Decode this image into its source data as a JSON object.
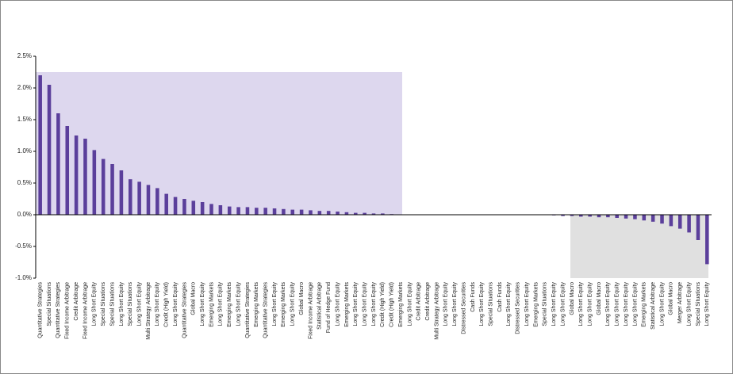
{
  "chart_data": {
    "type": "bar",
    "categories": [
      "Quantitative Strategies",
      "Special Situations",
      "Quantitative Strategies",
      "Fixed Income Arbitrage",
      "Credit Arbitrage",
      "Fixed Income Arbitrage",
      "Long Short Equity",
      "Special Situations",
      "Special Situations",
      "Long Short Equity",
      "Special Situations",
      "Long Short Equity",
      "Multi Strategy Arbitrage",
      "Long Short Equity",
      "Credit (High Yield)",
      "Long Short Equity",
      "Quantitative Strategies",
      "Global Macro",
      "Long Short Equity",
      "Emerging Markets",
      "Long Short Equity",
      "Emerging Markets",
      "Long Short Equity",
      "Quantitative Strategies",
      "Emerging Markets",
      "Quantitative Strategies",
      "Long Short Equity",
      "Emerging Markets",
      "Long Short Equity",
      "Global Macro",
      "Fixed Income Arbitrage",
      "Statistical Arbitrage",
      "Fund of Hedge Fund",
      "Long Short Equity",
      "Emerging Markets",
      "Long Short Equity",
      "Long Short Equity",
      "Long Short Equity",
      "Credit (High Yield)",
      "Credit (High Yield)",
      "Emerging Markets",
      "Long Short Equity",
      "Credit Arbitrage",
      "Credit Arbitrage",
      "Multi Strategy Arbitrage",
      "Long Short Equity",
      "Long Short Equity",
      "Distressed Securities",
      "Cash Funds",
      "Long Short Equity",
      "Special Situations",
      "Cash Funds",
      "Long Short Equity",
      "Distressed Securities",
      "Long Short Equity",
      "Emerging Markets",
      "Special Situations",
      "Long Short Equity",
      "Long Short Equity",
      "Global Macro",
      "Long Short Equity",
      "Long Short Equity",
      "Global Macro",
      "Long Short Equity",
      "Long Short Equity",
      "Long Short Equity",
      "Long Short Equity",
      "Emerging Markets",
      "Statistical Arbitrage",
      "Long Short Equity",
      "Global Macro",
      "Merger Arbitrage",
      "Long Short Equity",
      "Special Situations",
      "Long Short Equity"
    ],
    "values": [
      2.2,
      2.05,
      1.6,
      1.4,
      1.25,
      1.2,
      1.02,
      0.88,
      0.8,
      0.7,
      0.56,
      0.52,
      0.47,
      0.42,
      0.33,
      0.28,
      0.25,
      0.22,
      0.2,
      0.17,
      0.15,
      0.13,
      0.12,
      0.12,
      0.11,
      0.11,
      0.1,
      0.09,
      0.08,
      0.08,
      0.07,
      0.06,
      0.06,
      0.05,
      0.04,
      0.03,
      0.03,
      0.02,
      0.02,
      0.01,
      0,
      0,
      0,
      0,
      0,
      0,
      0,
      0,
      0,
      0,
      0,
      0,
      0,
      0,
      0,
      0,
      0,
      -0.01,
      -0.02,
      -0.02,
      -0.03,
      -0.03,
      -0.04,
      -0.04,
      -0.05,
      -0.06,
      -0.07,
      -0.09,
      -0.11,
      -0.14,
      -0.18,
      -0.22,
      -0.28,
      -0.4,
      -0.78
    ],
    "color": "#5b3f9b",
    "ylim": [
      -1,
      2.5
    ],
    "yticks": [
      {
        "value": -1,
        "label": "-1.0%"
      },
      {
        "value": -0.5,
        "label": "-0.5%"
      },
      {
        "value": 0,
        "label": "0.0%"
      },
      {
        "value": 0.5,
        "label": "0.5%"
      },
      {
        "value": 1,
        "label": "1.0%"
      },
      {
        "value": 1.5,
        "label": "1.5%"
      },
      {
        "value": 2,
        "label": "2.0%"
      },
      {
        "value": 2.5,
        "label": "2.5%"
      }
    ]
  }
}
